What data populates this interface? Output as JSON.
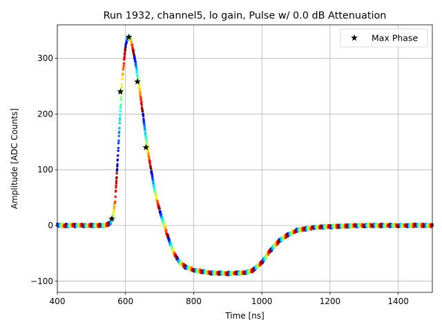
{
  "chart_data": {
    "type": "scatter",
    "title": "Run 1932, channel5, lo gain, Pulse w/ 0.0 dB Attenuation",
    "xlabel": "Time [ns]",
    "ylabel": "Amplitude [ADC Counts]",
    "xlim": [
      400,
      1500
    ],
    "ylim": [
      -120,
      360
    ],
    "xticks": [
      400,
      600,
      800,
      1000,
      1200,
      1400
    ],
    "yticks": [
      -100,
      0,
      100,
      200,
      300
    ],
    "xtick_labels": [
      "400",
      "600",
      "800",
      "1000",
      "1200",
      "1400"
    ],
    "ytick_labels": [
      "−100",
      "0",
      "100",
      "200",
      "300"
    ],
    "grid": true,
    "legend_position": "top-right",
    "colormap": "jet",
    "sample_interval_ns": 25,
    "waveform": [
      [
        400,
        0
      ],
      [
        500,
        0
      ],
      [
        540,
        0
      ],
      [
        555,
        4
      ],
      [
        562,
        12
      ],
      [
        570,
        45
      ],
      [
        580,
        150
      ],
      [
        590,
        260
      ],
      [
        600,
        320
      ],
      [
        605,
        334
      ],
      [
        610,
        338
      ],
      [
        615,
        335
      ],
      [
        620,
        322
      ],
      [
        630,
        290
      ],
      [
        640,
        250
      ],
      [
        650,
        205
      ],
      [
        660,
        158
      ],
      [
        670,
        118
      ],
      [
        680,
        82
      ],
      [
        690,
        50
      ],
      [
        700,
        28
      ],
      [
        710,
        8
      ],
      [
        720,
        -12
      ],
      [
        730,
        -30
      ],
      [
        740,
        -46
      ],
      [
        750,
        -58
      ],
      [
        760,
        -67
      ],
      [
        775,
        -74
      ],
      [
        800,
        -80
      ],
      [
        850,
        -85
      ],
      [
        900,
        -86
      ],
      [
        950,
        -85
      ],
      [
        975,
        -80
      ],
      [
        1000,
        -66
      ],
      [
        1025,
        -45
      ],
      [
        1050,
        -28
      ],
      [
        1075,
        -17
      ],
      [
        1100,
        -9
      ],
      [
        1150,
        -4
      ],
      [
        1200,
        -2
      ],
      [
        1300,
        0
      ],
      [
        1500,
        0
      ]
    ],
    "series": [
      {
        "name": "Max Phase",
        "marker": "star",
        "color": "#000000",
        "x": [
          560,
          585,
          610,
          635,
          660
        ],
        "y": [
          12,
          240,
          338,
          258,
          140
        ]
      }
    ]
  }
}
